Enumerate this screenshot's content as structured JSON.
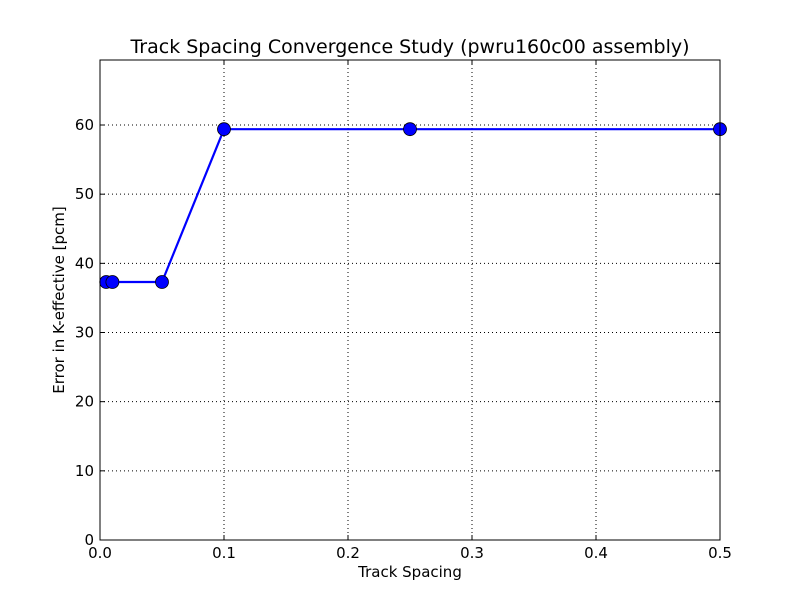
{
  "chart_data": {
    "type": "line",
    "title": "Track Spacing Convergence Study (pwru160c00 assembly)",
    "xlabel": "Track Spacing",
    "ylabel": "Error in K-effective [pcm]",
    "xlim": [
      0.0,
      0.5
    ],
    "ylim": [
      0,
      69.4
    ],
    "x_ticks": [
      "0.0",
      "0.1",
      "0.2",
      "0.3",
      "0.4",
      "0.5"
    ],
    "y_ticks": [
      "0",
      "10",
      "20",
      "30",
      "40",
      "50",
      "60"
    ],
    "grid": true,
    "series": [
      {
        "color": "#0000ff",
        "marker": "circle",
        "x": [
          0.005,
          0.01,
          0.05,
          0.1,
          0.25,
          0.5
        ],
        "y": [
          37.3,
          37.3,
          37.3,
          59.4,
          59.4,
          59.4
        ]
      }
    ]
  }
}
